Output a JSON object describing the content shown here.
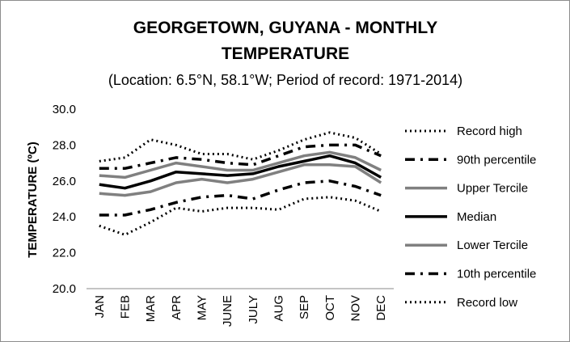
{
  "chart_data": {
    "type": "line",
    "title_line1": "GEORGETOWN, GUYANA - MONTHLY",
    "title_line2": "TEMPERATURE",
    "subtitle": "(Location: 6.5°N, 58.1°W; Period of record: 1971-2014)",
    "ylabel": "TEMPERATURE (ºC)",
    "xlabel": "",
    "ylim": [
      20,
      30
    ],
    "yticks": [
      "20.0",
      "22.0",
      "24.0",
      "26.0",
      "28.0",
      "30.0"
    ],
    "categories": [
      "JAN",
      "FEB",
      "MAR",
      "APR",
      "MAY",
      "JUNE",
      "JULY",
      "AUG",
      "SEP",
      "OCT",
      "NOV",
      "DEC"
    ],
    "grid": false,
    "legend_position": "right",
    "series": [
      {
        "name": "Record high",
        "style": "dotted",
        "color": "#000000",
        "values": [
          27.1,
          27.3,
          28.3,
          28.0,
          27.5,
          27.5,
          27.2,
          27.7,
          28.3,
          28.7,
          28.4,
          27.5
        ]
      },
      {
        "name": "90th percentile",
        "style": "dashdot",
        "color": "#000000",
        "values": [
          26.7,
          26.7,
          27.0,
          27.3,
          27.2,
          27.0,
          26.9,
          27.4,
          27.9,
          28.0,
          28.0,
          27.4
        ]
      },
      {
        "name": "Upper Tercile",
        "style": "solid",
        "color": "#808080",
        "values": [
          26.3,
          26.2,
          26.6,
          27.0,
          26.8,
          26.6,
          26.6,
          27.0,
          27.4,
          27.6,
          27.3,
          26.6
        ]
      },
      {
        "name": "Median",
        "style": "solid",
        "color": "#000000",
        "values": [
          25.8,
          25.6,
          26.0,
          26.5,
          26.4,
          26.3,
          26.4,
          26.8,
          27.1,
          27.4,
          27.0,
          26.2
        ]
      },
      {
        "name": "Lower Tercile",
        "style": "solid",
        "color": "#808080",
        "values": [
          25.3,
          25.2,
          25.4,
          25.9,
          26.1,
          25.9,
          26.1,
          26.5,
          26.9,
          26.9,
          26.8,
          25.9
        ]
      },
      {
        "name": "10th percentile",
        "style": "dashdot",
        "color": "#000000",
        "values": [
          24.1,
          24.1,
          24.4,
          24.8,
          25.1,
          25.2,
          25.0,
          25.5,
          25.9,
          26.0,
          25.7,
          25.2
        ]
      },
      {
        "name": "Record low",
        "style": "dotted",
        "color": "#000000",
        "values": [
          23.5,
          23.0,
          23.7,
          24.5,
          24.3,
          24.5,
          24.5,
          24.4,
          25.0,
          25.1,
          24.9,
          24.3
        ]
      }
    ]
  }
}
